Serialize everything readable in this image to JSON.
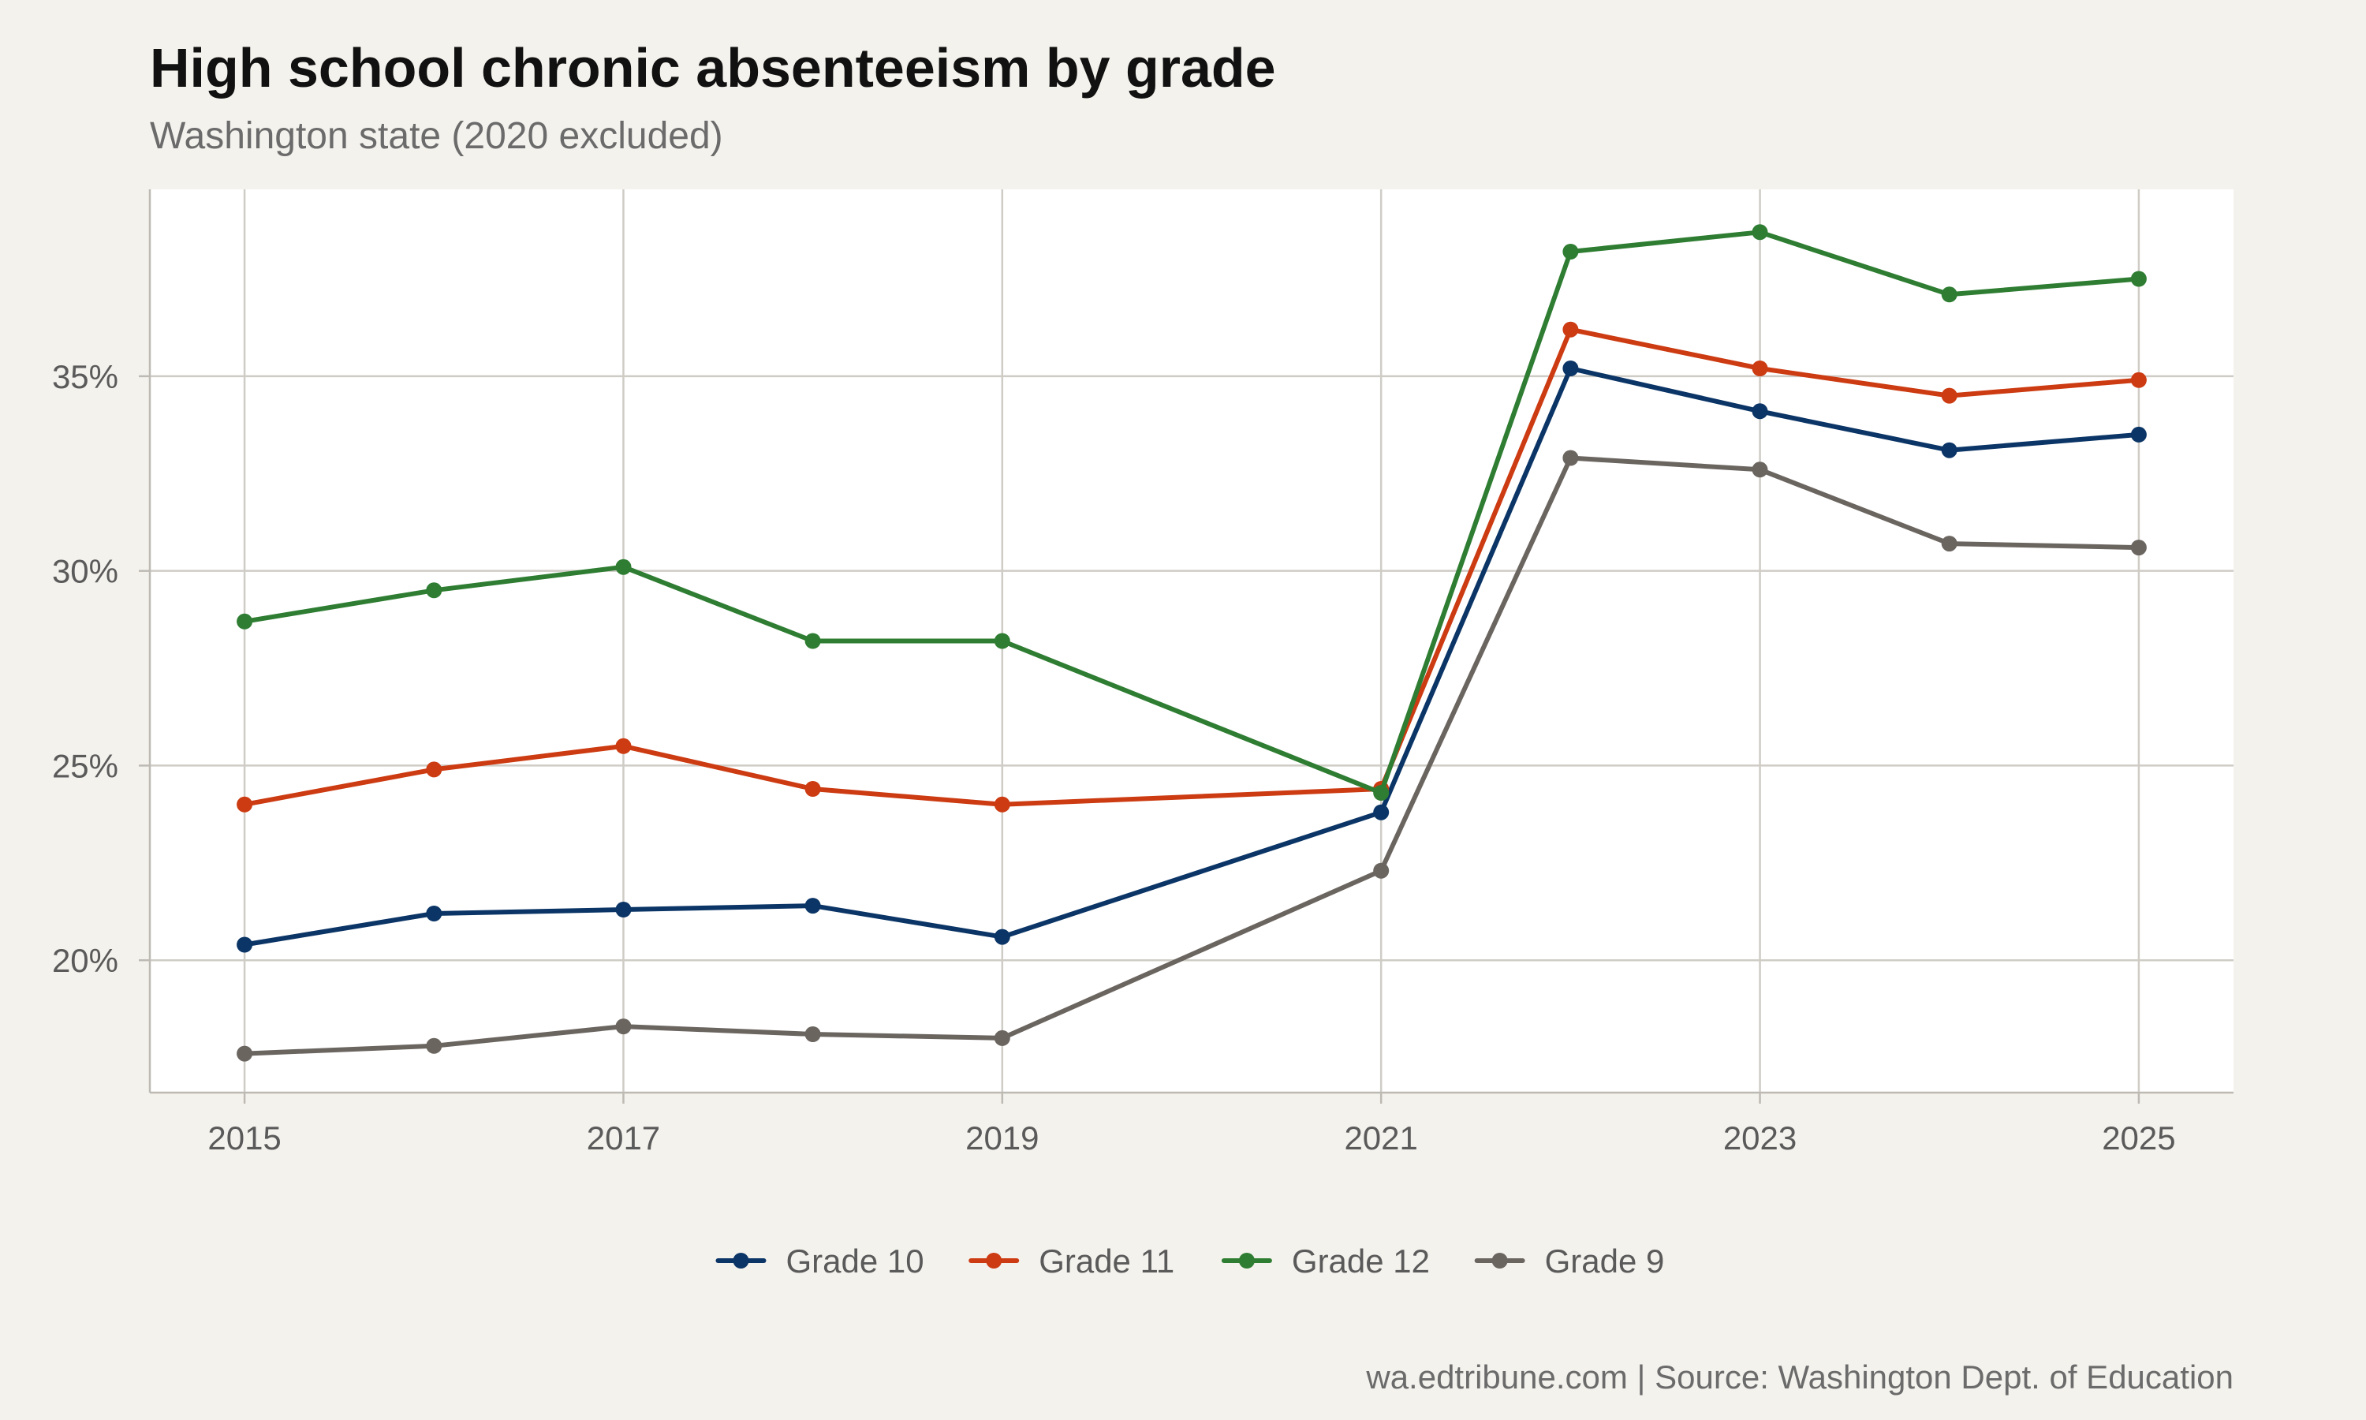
{
  "chart_data": {
    "type": "line",
    "title": "High school chronic absenteeism by grade",
    "subtitle": "Washington state (2020 excluded)",
    "caption": "wa.edtribune.com | Source: Washington Dept. of Education",
    "xlabel": "",
    "ylabel": "",
    "x": [
      2015,
      2016,
      2017,
      2018,
      2019,
      2021,
      2022,
      2023,
      2024,
      2025
    ],
    "x_ticks": [
      "2015",
      "2017",
      "2019",
      "2021",
      "2023",
      "2025"
    ],
    "y_ticks": [
      "20%",
      "25%",
      "30%",
      "35%"
    ],
    "xlim": [
      2014.5,
      2025.5
    ],
    "ylim": [
      16.6,
      39.8
    ],
    "grid": true,
    "legend_position": "bottom",
    "series": [
      {
        "name": "Grade 10",
        "color": "#0b3566",
        "values": [
          20.4,
          21.2,
          21.3,
          21.4,
          20.6,
          23.8,
          35.2,
          34.1,
          33.1,
          33.5
        ]
      },
      {
        "name": "Grade 11",
        "color": "#cc3b12",
        "values": [
          24.0,
          24.9,
          25.5,
          24.4,
          24.0,
          24.4,
          36.2,
          35.2,
          34.5,
          34.9
        ]
      },
      {
        "name": "Grade 12",
        "color": "#2e7d32",
        "values": [
          28.7,
          29.5,
          30.1,
          28.2,
          28.2,
          24.3,
          38.2,
          38.7,
          37.1,
          37.5
        ]
      },
      {
        "name": "Grade 9",
        "color": "#6b6560",
        "values": [
          17.6,
          17.8,
          18.3,
          18.1,
          18.0,
          22.3,
          32.9,
          32.6,
          30.7,
          30.6
        ]
      }
    ]
  }
}
